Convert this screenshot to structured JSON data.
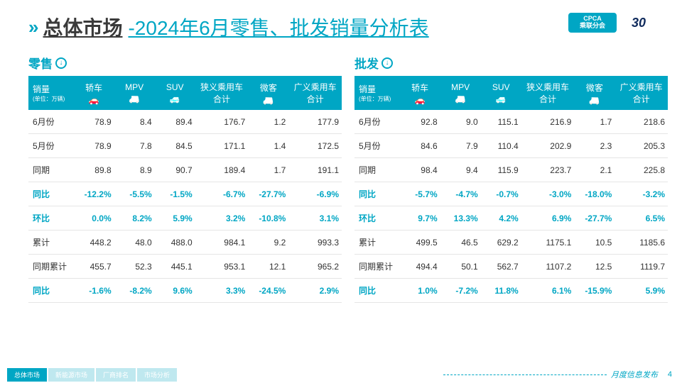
{
  "header": {
    "title_main": "总体市场",
    "title_sub": "-2024年6月零售、批发销量分析表",
    "logo_cpca_top": "CPCA",
    "logo_cpca_bot": "乘联分会",
    "logo_30": "30"
  },
  "columns": {
    "label": "销量",
    "unit": "(单位：万辆)",
    "c1": "轿车",
    "c2": "MPV",
    "c3": "SUV",
    "c4": "狭义乘用车合计",
    "c5": "微客",
    "c6": "广义乘用车合计"
  },
  "retail": {
    "title": "零售",
    "rows": [
      {
        "label": "6月份",
        "v": [
          "78.9",
          "8.4",
          "89.4",
          "176.7",
          "1.2",
          "177.9"
        ],
        "teal": false
      },
      {
        "label": "5月份",
        "v": [
          "78.9",
          "7.8",
          "84.5",
          "171.1",
          "1.4",
          "172.5"
        ],
        "teal": false
      },
      {
        "label": "同期",
        "v": [
          "89.8",
          "8.9",
          "90.7",
          "189.4",
          "1.7",
          "191.1"
        ],
        "teal": false
      },
      {
        "label": "同比",
        "v": [
          "-12.2%",
          "-5.5%",
          "-1.5%",
          "-6.7%",
          "-27.7%",
          "-6.9%"
        ],
        "teal": true
      },
      {
        "label": "环比",
        "v": [
          "0.0%",
          "8.2%",
          "5.9%",
          "3.2%",
          "-10.8%",
          "3.1%"
        ],
        "teal": true
      },
      {
        "label": "累计",
        "v": [
          "448.2",
          "48.0",
          "488.0",
          "984.1",
          "9.2",
          "993.3"
        ],
        "teal": false
      },
      {
        "label": "同期累计",
        "v": [
          "455.7",
          "52.3",
          "445.1",
          "953.1",
          "12.1",
          "965.2"
        ],
        "teal": false
      },
      {
        "label": "同比",
        "v": [
          "-1.6%",
          "-8.2%",
          "9.6%",
          "3.3%",
          "-24.5%",
          "2.9%"
        ],
        "teal": true
      }
    ]
  },
  "wholesale": {
    "title": "批发",
    "rows": [
      {
        "label": "6月份",
        "v": [
          "92.8",
          "9.0",
          "115.1",
          "216.9",
          "1.7",
          "218.6"
        ],
        "teal": false
      },
      {
        "label": "5月份",
        "v": [
          "84.6",
          "7.9",
          "110.4",
          "202.9",
          "2.3",
          "205.3"
        ],
        "teal": false
      },
      {
        "label": "同期",
        "v": [
          "98.4",
          "9.4",
          "115.9",
          "223.7",
          "2.1",
          "225.8"
        ],
        "teal": false
      },
      {
        "label": "同比",
        "v": [
          "-5.7%",
          "-4.7%",
          "-0.7%",
          "-3.0%",
          "-18.0%",
          "-3.2%"
        ],
        "teal": true
      },
      {
        "label": "环比",
        "v": [
          "9.7%",
          "13.3%",
          "4.2%",
          "6.9%",
          "-27.7%",
          "6.5%"
        ],
        "teal": true
      },
      {
        "label": "累计",
        "v": [
          "499.5",
          "46.5",
          "629.2",
          "1175.1",
          "10.5",
          "1185.6"
        ],
        "teal": false
      },
      {
        "label": "同期累计",
        "v": [
          "494.4",
          "50.1",
          "562.7",
          "1107.2",
          "12.5",
          "1119.7"
        ],
        "teal": false
      },
      {
        "label": "同比",
        "v": [
          "1.0%",
          "-7.2%",
          "11.8%",
          "6.1%",
          "-15.9%",
          "5.9%"
        ],
        "teal": true
      }
    ]
  },
  "footer": {
    "tabs": [
      "总体市场",
      "新能源市场",
      "厂商排名",
      "市场分析"
    ],
    "right": "月度信息发布",
    "page": "4"
  },
  "style": {
    "teal": "#00a6c4",
    "text": "#333333"
  }
}
